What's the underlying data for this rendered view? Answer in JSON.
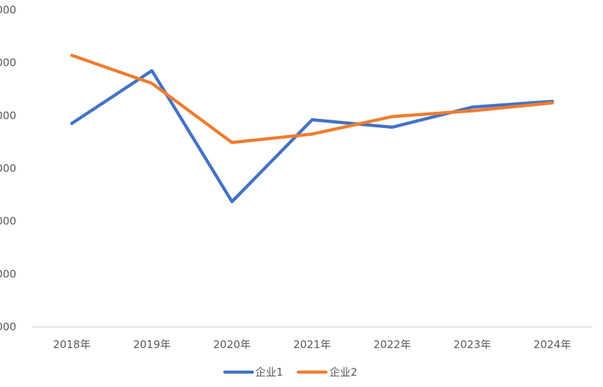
{
  "chart_data": {
    "type": "line",
    "categories": [
      "2018年",
      "2019年",
      "2020年",
      "2021年",
      "2022年",
      "2023年",
      "2024年"
    ],
    "y_tick_labels": [
      "000",
      "000",
      "000",
      "000",
      "000",
      "000",
      "000"
    ],
    "ylim": [
      0,
      6
    ],
    "grid": false,
    "legend_position": "bottom",
    "series": [
      {
        "name": "企业1",
        "color": "#4472C4",
        "values": [
          3.85,
          4.85,
          2.37,
          3.92,
          3.78,
          4.16,
          4.27
        ]
      },
      {
        "name": "企业2",
        "color": "#ED7D31",
        "values": [
          5.14,
          4.61,
          3.49,
          3.65,
          3.98,
          4.09,
          4.24
        ]
      }
    ]
  }
}
